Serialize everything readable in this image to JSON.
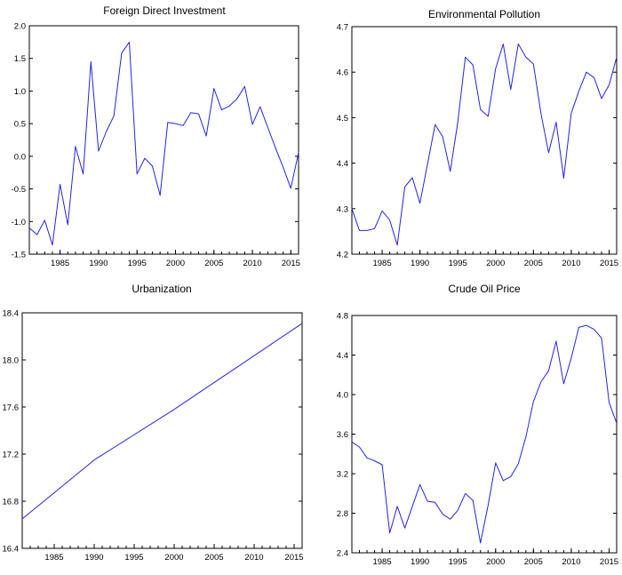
{
  "chart_data": [
    {
      "type": "line",
      "title": "Foreign Direct Investment",
      "xlim": [
        1981,
        2016
      ],
      "ylim": [
        -1.5,
        2.0
      ],
      "xticks": [
        1985,
        1990,
        1995,
        2000,
        2005,
        2010,
        2015
      ],
      "yticks": [
        "-1.5",
        "-1.0",
        "-0.5",
        "0.0",
        "0.5",
        "1.0",
        "1.5",
        "2.0"
      ],
      "grid": false,
      "series": [
        {
          "color": "#2323e6",
          "x": [
            1981,
            1982,
            1983,
            1984,
            1985,
            1986,
            1987,
            1988,
            1989,
            1990,
            1991,
            1992,
            1993,
            1994,
            1995,
            1996,
            1997,
            1998,
            1999,
            2000,
            2001,
            2002,
            2003,
            2004,
            2005,
            2006,
            2007,
            2008,
            2009,
            2010,
            2011,
            2012,
            2013,
            2014,
            2015,
            2016
          ],
          "y": [
            -1.1,
            -1.2,
            -0.98,
            -1.36,
            -0.43,
            -1.05,
            0.15,
            -0.27,
            1.45,
            0.08,
            0.38,
            0.62,
            1.58,
            1.75,
            -0.27,
            -0.03,
            -0.15,
            -0.6,
            0.52,
            0.5,
            0.47,
            0.67,
            0.65,
            0.31,
            1.04,
            0.71,
            0.77,
            0.88,
            1.07,
            0.49,
            0.76,
            0.44,
            0.13,
            -0.17,
            -0.49,
            0.06
          ]
        }
      ]
    },
    {
      "type": "line",
      "title": "Environmental Pollution",
      "xlim": [
        1981,
        2016
      ],
      "ylim": [
        4.2,
        4.7
      ],
      "xticks": [
        1985,
        1990,
        1995,
        2000,
        2005,
        2010,
        2015
      ],
      "yticks": [
        "4.2",
        "4.3",
        "4.4",
        "4.5",
        "4.6",
        "4.7"
      ],
      "grid": false,
      "series": [
        {
          "color": "#2323e6",
          "x": [
            1981,
            1982,
            1983,
            1984,
            1985,
            1986,
            1987,
            1988,
            1989,
            1990,
            1991,
            1992,
            1993,
            1994,
            1995,
            1996,
            1997,
            1998,
            1999,
            2000,
            2001,
            2002,
            2003,
            2004,
            2005,
            2006,
            2007,
            2008,
            2009,
            2010,
            2011,
            2012,
            2013,
            2014,
            2015,
            2016
          ],
          "y": [
            4.3,
            4.252,
            4.252,
            4.256,
            4.295,
            4.275,
            4.22,
            4.348,
            4.368,
            4.312,
            4.398,
            4.485,
            4.458,
            4.382,
            4.49,
            4.633,
            4.616,
            4.518,
            4.503,
            4.608,
            4.662,
            4.562,
            4.662,
            4.633,
            4.618,
            4.508,
            4.423,
            4.49,
            4.367,
            4.51,
            4.558,
            4.6,
            4.588,
            4.542,
            4.572,
            4.633
          ]
        }
      ]
    },
    {
      "type": "line",
      "title": "Urbanization",
      "xlim": [
        1981,
        2016
      ],
      "ylim": [
        16.4,
        18.4
      ],
      "xticks": [
        1985,
        1990,
        1995,
        2000,
        2005,
        2010,
        2015
      ],
      "yticks": [
        "16.4",
        "16.8",
        "17.2",
        "17.6",
        "18.0",
        "18.4"
      ],
      "grid": false,
      "series": [
        {
          "color": "#2323e6",
          "x": [
            1981,
            1990,
            2000,
            2016
          ],
          "y": [
            16.65,
            17.15,
            17.58,
            18.31
          ]
        }
      ]
    },
    {
      "type": "line",
      "title": "Crude Oil Price",
      "xlim": [
        1981,
        2016
      ],
      "ylim": [
        2.4,
        4.8
      ],
      "xticks": [
        1985,
        1990,
        1995,
        2000,
        2005,
        2010,
        2015
      ],
      "yticks": [
        "2.4",
        "2.8",
        "3.2",
        "3.6",
        "4.0",
        "4.4",
        "4.8"
      ],
      "grid": false,
      "series": [
        {
          "color": "#2323e6",
          "x": [
            1981,
            1982,
            1983,
            1984,
            1985,
            1986,
            1987,
            1988,
            1989,
            1990,
            1991,
            1992,
            1993,
            1994,
            1995,
            1996,
            1997,
            1998,
            1999,
            2000,
            2001,
            2002,
            2003,
            2004,
            2005,
            2006,
            2007,
            2008,
            2009,
            2010,
            2011,
            2012,
            2013,
            2014,
            2015,
            2016
          ],
          "y": [
            3.52,
            3.47,
            3.36,
            3.33,
            3.29,
            2.6,
            2.87,
            2.65,
            2.87,
            3.09,
            2.92,
            2.91,
            2.79,
            2.74,
            2.83,
            3.0,
            2.93,
            2.5,
            2.88,
            3.31,
            3.13,
            3.17,
            3.3,
            3.57,
            3.93,
            4.13,
            4.24,
            4.54,
            4.11,
            4.37,
            4.68,
            4.7,
            4.66,
            4.57,
            3.92,
            3.71
          ]
        }
      ]
    }
  ]
}
